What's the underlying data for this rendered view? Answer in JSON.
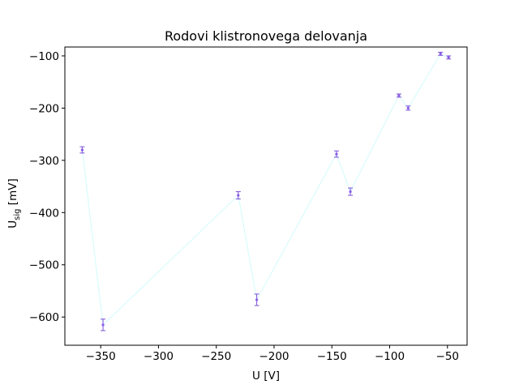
{
  "chart_data": {
    "type": "scatter",
    "title": "Rodovi klistronovega delovanja",
    "xlabel": "U [V]",
    "ylabel": {
      "main": "U",
      "sub": "sig",
      "unit": " [mV]"
    },
    "xlim": [
      -381,
      -33
    ],
    "ylim": [
      -654,
      -83
    ],
    "xticks": [
      -350,
      -300,
      -250,
      -200,
      -150,
      -100,
      -50
    ],
    "xtick_labels": [
      "−350",
      "−300",
      "−250",
      "−200",
      "−150",
      "−100",
      "−50"
    ],
    "yticks": [
      -600,
      -500,
      -400,
      -300,
      -200,
      -100
    ],
    "ytick_labels": [
      "−600",
      "−500",
      "−400",
      "−300",
      "−200",
      "−100"
    ],
    "grid": false,
    "series": [
      {
        "x": [
          -366,
          -348,
          -231,
          -215,
          -146,
          -134,
          -92,
          -84,
          -56,
          -49
        ],
        "y": [
          -280,
          -615,
          -367,
          -567,
          -288,
          -360,
          -176,
          -200,
          -96,
          -103
        ],
        "yerr": [
          6,
          11,
          7,
          11,
          6,
          7,
          3,
          4,
          3,
          3
        ]
      }
    ],
    "colors": {
      "line": "#d9fbfb",
      "marker": "#8a5ce6",
      "errorbar": "#7b52d6"
    }
  }
}
